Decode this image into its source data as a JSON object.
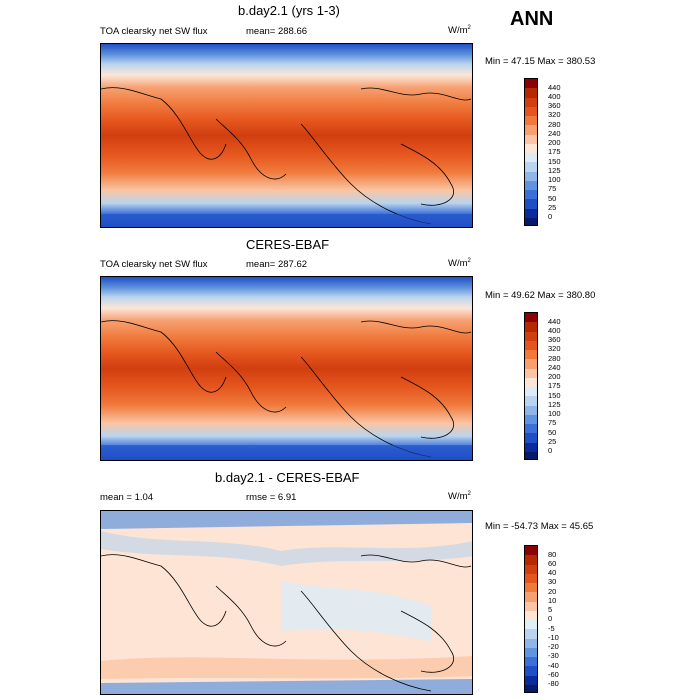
{
  "season": "ANN",
  "panels": [
    {
      "title": "b.day2.1 (yrs 1-3)",
      "left_label": "TOA clearsky net SW flux",
      "center_label": "mean= 288.66",
      "units": "W/m",
      "units_sup": "2",
      "minmax": "Min =  47.15 Max = 380.53",
      "levels": [
        "440",
        "400",
        "360",
        "320",
        "280",
        "240",
        "200",
        "175",
        "150",
        "125",
        "100",
        "75",
        "50",
        "25",
        "0"
      ],
      "colors": [
        "#8b0000",
        "#b52800",
        "#d13e10",
        "#e5561e",
        "#f07a3c",
        "#f6a070",
        "#fac5a4",
        "#fce6d8",
        "#dcebf6",
        "#b9d4ee",
        "#8fb6e6",
        "#6194de",
        "#3a70d8",
        "#1f4fc6",
        "#0b2b9c",
        "#051a6b"
      ]
    },
    {
      "title": "CERES-EBAF",
      "left_label": "TOA clearsky net SW flux",
      "center_label": "mean= 287.62",
      "units": "W/m",
      "units_sup": "2",
      "minmax": "Min =  49.62 Max = 380.80",
      "levels": [
        "440",
        "400",
        "360",
        "320",
        "280",
        "240",
        "200",
        "175",
        "150",
        "125",
        "100",
        "75",
        "50",
        "25",
        "0"
      ],
      "colors": [
        "#8b0000",
        "#b52800",
        "#d13e10",
        "#e5561e",
        "#f07a3c",
        "#f6a070",
        "#fac5a4",
        "#fce6d8",
        "#dcebf6",
        "#b9d4ee",
        "#8fb6e6",
        "#6194de",
        "#3a70d8",
        "#1f4fc6",
        "#0b2b9c",
        "#051a6b"
      ]
    },
    {
      "title": "b.day2.1 - CERES-EBAF",
      "left_label": "mean =   1.04",
      "center_label": "rmse =   6.91",
      "units": "W/m",
      "units_sup": "2",
      "minmax": "Min = -54.73 Max =  45.65",
      "levels": [
        "80",
        "60",
        "40",
        "30",
        "20",
        "10",
        "5",
        "0",
        "-5",
        "-10",
        "-20",
        "-30",
        "-40",
        "-60",
        "-80"
      ],
      "colors": [
        "#8b0000",
        "#b52800",
        "#d13e10",
        "#e5561e",
        "#f07a3c",
        "#f6a070",
        "#fac5a4",
        "#fde4d4",
        "#e0eef8",
        "#b9d4ee",
        "#8fb6e6",
        "#6194de",
        "#3a70d8",
        "#1f4fc6",
        "#0b2b9c",
        "#051a6b"
      ]
    }
  ]
}
